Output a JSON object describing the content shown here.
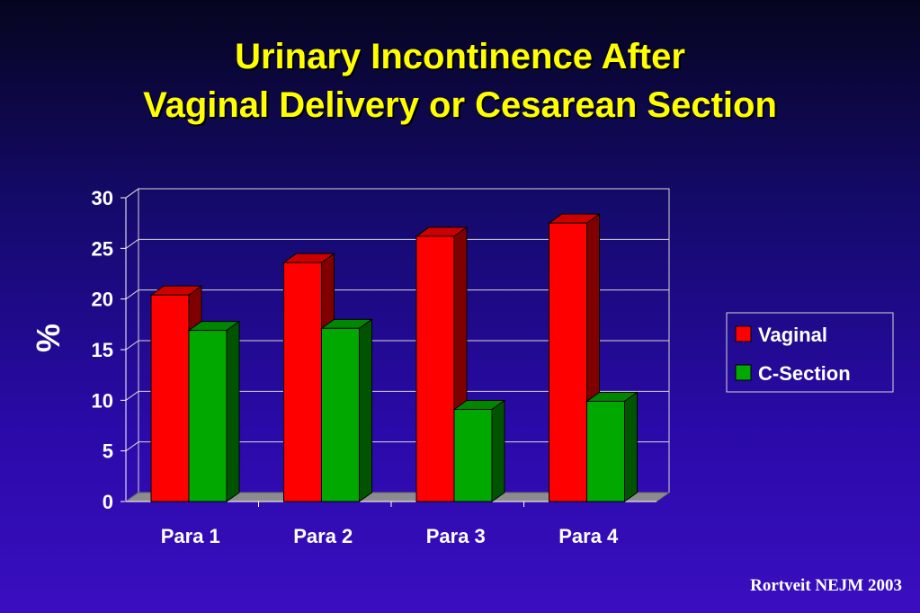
{
  "title_line1": "Urinary Incontinence After",
  "title_line2": "Vaginal Delivery or Cesarean Section",
  "citation": "Rortveit NEJM 2003",
  "colors": {
    "vaginal": "#ff0000",
    "c_section": "#00a800",
    "text": "#ffffff",
    "title": "#ffff00"
  },
  "chart_data": {
    "type": "bar",
    "title": "",
    "xlabel": "",
    "ylabel": "%",
    "ylim": [
      0,
      30
    ],
    "yticks": [
      0,
      5,
      10,
      15,
      20,
      25,
      30
    ],
    "grid": true,
    "legend_position": "right",
    "categories": [
      "Para 1",
      "Para 2",
      "Para 3",
      "Para 4"
    ],
    "series": [
      {
        "name": "Vaginal",
        "color": "#ff0000",
        "values": [
          20.4,
          23.6,
          26.2,
          27.5
        ]
      },
      {
        "name": "C-Section",
        "color": "#00a800",
        "values": [
          16.9,
          17.1,
          9.1,
          9.9
        ]
      }
    ]
  }
}
